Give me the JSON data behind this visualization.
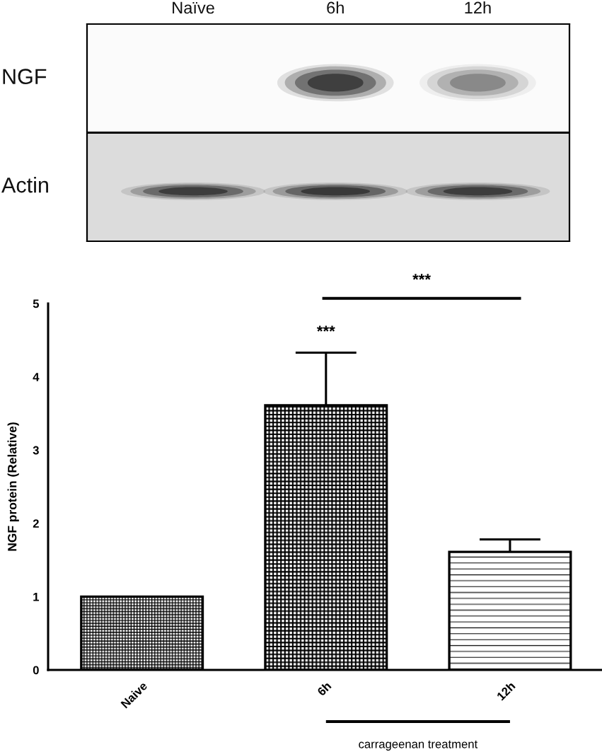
{
  "chart_data": [
    {
      "type": "other",
      "categories": [
        "Naïve",
        "6h",
        "12h"
      ],
      "y_categories": [
        "NGF",
        "Actin"
      ]
    },
    {
      "type": "bar",
      "categories": [
        "Naive",
        "6h",
        "12h"
      ],
      "values": [
        1.0,
        3.61,
        1.61
      ],
      "errors": [
        null,
        [
          3.61,
          4.33
        ],
        [
          1.61,
          1.78
        ]
      ],
      "ylabel": "NGF protein (Relative)",
      "ylim": [
        0,
        5
      ],
      "yticks": [
        0,
        1,
        2,
        3,
        4,
        5
      ],
      "annotations": [
        "***",
        "***",
        "carrageenan treatment"
      ]
    }
  ]
}
